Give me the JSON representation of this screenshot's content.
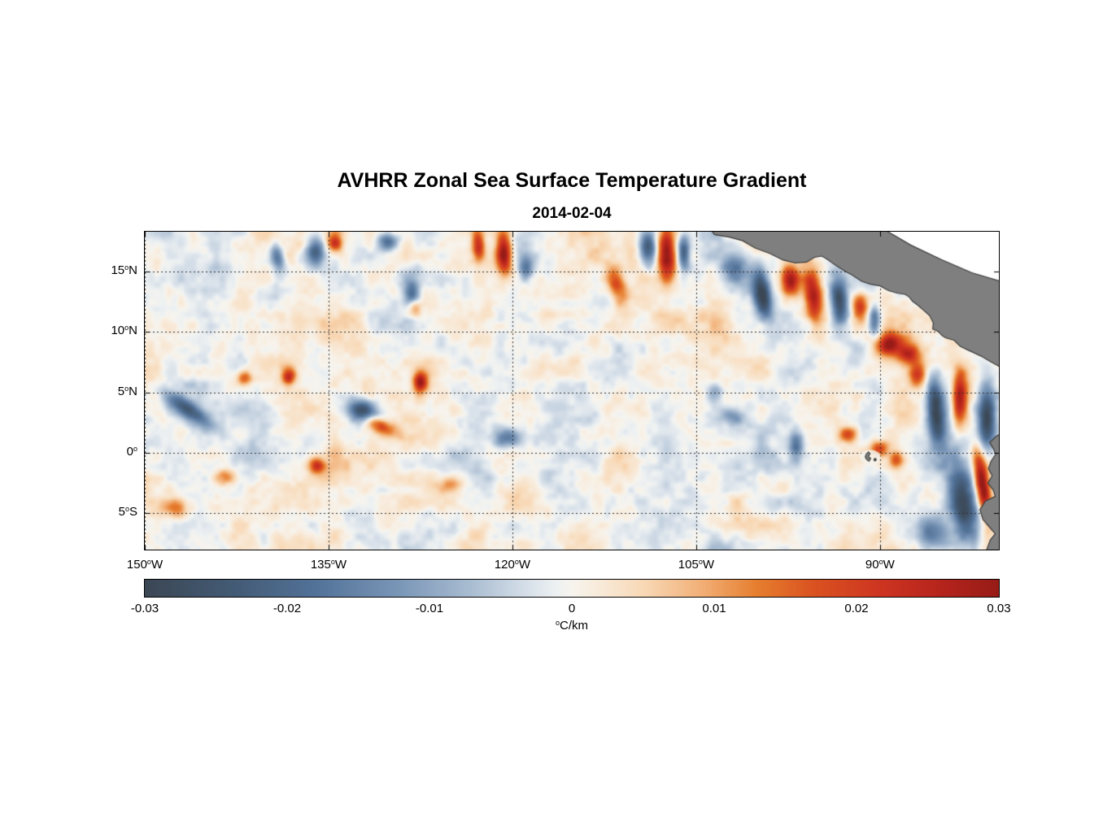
{
  "title": "AVHRR Zonal Sea Surface Temperature Gradient",
  "subtitle": "2014-02-04",
  "chart_data": {
    "type": "heatmap",
    "title": "AVHRR Zonal Sea Surface Temperature Gradient",
    "subtitle": "2014-02-04",
    "units": {
      "sup": "o",
      "text": "C/km"
    },
    "value_range": [
      -0.03,
      0.03
    ],
    "x_axis": {
      "range_lon_east": [
        -150,
        -80.3
      ],
      "ticks": [
        {
          "lon": -150,
          "num": "150",
          "sup": "o",
          "suf": "W"
        },
        {
          "lon": -135,
          "num": "135",
          "sup": "o",
          "suf": "W"
        },
        {
          "lon": -120,
          "num": "120",
          "sup": "o",
          "suf": "W"
        },
        {
          "lon": -105,
          "num": "105",
          "sup": "o",
          "suf": "W"
        },
        {
          "lon": -90,
          "num": "90",
          "sup": "o",
          "suf": "W"
        }
      ]
    },
    "y_axis": {
      "range_lat": [
        18.3,
        -8.0
      ],
      "ticks": [
        {
          "lat": 15,
          "num": "15",
          "sup": "o",
          "suf": "N"
        },
        {
          "lat": 10,
          "num": "10",
          "sup": "o",
          "suf": "N"
        },
        {
          "lat": 5,
          "num": "5",
          "sup": "o",
          "suf": "N"
        },
        {
          "lat": 0,
          "num": "0",
          "sup": "o",
          "suf": ""
        },
        {
          "lat": -5,
          "num": "5",
          "sup": "o",
          "suf": "S"
        }
      ]
    },
    "colorbar_ticks": [
      "-0.03",
      "-0.02",
      "-0.01",
      "0",
      "0.01",
      "0.02",
      "0.03"
    ],
    "colormap_stops": [
      {
        "v": -0.03,
        "color": "#3b4754"
      },
      {
        "v": -0.024,
        "color": "#435a74"
      },
      {
        "v": -0.018,
        "color": "#527298"
      },
      {
        "v": -0.012,
        "color": "#7b97b8"
      },
      {
        "v": -0.007,
        "color": "#aabdd2"
      },
      {
        "v": -0.003,
        "color": "#d8e1ea"
      },
      {
        "v": -0.001,
        "color": "#eef1f2"
      },
      {
        "v": 0.0,
        "color": "#f7f4ee"
      },
      {
        "v": 0.002,
        "color": "#f8ead9"
      },
      {
        "v": 0.005,
        "color": "#f8d9b6"
      },
      {
        "v": 0.009,
        "color": "#f2b179"
      },
      {
        "v": 0.013,
        "color": "#e67e2e"
      },
      {
        "v": 0.017,
        "color": "#da5220"
      },
      {
        "v": 0.022,
        "color": "#cc3320"
      },
      {
        "v": 0.026,
        "color": "#b5241c"
      },
      {
        "v": 0.03,
        "color": "#971b17"
      }
    ],
    "colors": {
      "land": "#7f7f7f",
      "coast": "#3c3c3c",
      "grid": "#2e2e2e",
      "frame": "#000000",
      "masked": "#ffffff",
      "background": "#ffffff"
    },
    "noise": {
      "seed": 20140204,
      "octaves": [
        {
          "nx": 18,
          "ny": 7,
          "amp": 0.0038
        },
        {
          "nx": 36,
          "ny": 14,
          "amp": 0.003
        },
        {
          "nx": 72,
          "ny": 27,
          "amp": 0.0022
        },
        {
          "nx": 144,
          "ny": 54,
          "amp": 0.0013
        }
      ]
    },
    "features_format": [
      "lon",
      "lat",
      "sigma_lon_deg",
      "sigma_lat_deg",
      "rot_deg",
      "amplitude_C_per_km"
    ],
    "features": [
      [
        -139.2,
        16.2,
        0.4,
        0.9,
        10,
        -0.018
      ],
      [
        -136.1,
        16.8,
        0.5,
        0.8,
        0,
        -0.022
      ],
      [
        -134.5,
        17.4,
        0.4,
        0.5,
        0,
        0.02
      ],
      [
        -130.2,
        17.5,
        0.6,
        0.5,
        0,
        -0.02
      ],
      [
        -122.8,
        17.3,
        0.35,
        0.9,
        5,
        0.022
      ],
      [
        -120.7,
        16.5,
        0.45,
        1.3,
        0,
        0.03
      ],
      [
        -118.9,
        15.3,
        0.4,
        0.7,
        0,
        -0.015
      ],
      [
        -108.9,
        17.0,
        0.5,
        1.0,
        0,
        -0.028
      ],
      [
        -107.4,
        16.3,
        0.5,
        1.5,
        0,
        0.03
      ],
      [
        -106.0,
        16.6,
        0.35,
        1.0,
        0,
        -0.024
      ],
      [
        -111.5,
        14.0,
        0.5,
        1.1,
        20,
        0.018
      ],
      [
        -101.8,
        15.3,
        0.8,
        0.9,
        0,
        -0.016
      ],
      [
        -99.6,
        13.2,
        0.5,
        1.5,
        10,
        -0.03
      ],
      [
        -97.3,
        14.3,
        0.55,
        0.95,
        0,
        0.032
      ],
      [
        -95.4,
        13.1,
        0.55,
        1.7,
        8,
        0.03
      ],
      [
        -93.3,
        12.6,
        0.5,
        1.4,
        5,
        -0.028
      ],
      [
        -91.6,
        12.1,
        0.45,
        0.8,
        0,
        0.02
      ],
      [
        -90.4,
        10.9,
        0.35,
        0.9,
        0,
        -0.02
      ],
      [
        -89.2,
        9.0,
        0.75,
        0.65,
        0,
        0.028
      ],
      [
        -87.6,
        8.2,
        0.6,
        0.55,
        0,
        0.022
      ],
      [
        -85.4,
        3.6,
        0.5,
        2.0,
        5,
        -0.03
      ],
      [
        -83.4,
        4.5,
        0.45,
        1.7,
        0,
        0.032
      ],
      [
        -81.2,
        3.0,
        0.5,
        1.9,
        0,
        -0.028
      ],
      [
        -86.9,
        6.4,
        0.5,
        0.7,
        0,
        0.018
      ],
      [
        -92.6,
        1.5,
        0.55,
        0.5,
        0,
        0.022
      ],
      [
        -96.8,
        0.6,
        0.4,
        0.9,
        0,
        -0.015
      ],
      [
        -90.0,
        0.3,
        0.5,
        0.4,
        0,
        0.018
      ],
      [
        -88.6,
        -0.6,
        0.4,
        0.5,
        0,
        0.016
      ],
      [
        -81.6,
        -2.6,
        0.4,
        2.0,
        8,
        0.034
      ],
      [
        -83.1,
        -4.2,
        0.8,
        2.3,
        10,
        -0.03
      ],
      [
        -85.6,
        -6.6,
        1.1,
        0.9,
        0,
        -0.02
      ],
      [
        -146.6,
        3.6,
        1.6,
        0.5,
        -35,
        -0.024
      ],
      [
        -141.9,
        6.2,
        0.45,
        0.45,
        0,
        0.018
      ],
      [
        -138.3,
        6.3,
        0.4,
        0.5,
        0,
        0.022
      ],
      [
        -132.3,
        3.4,
        0.85,
        0.65,
        -30,
        -0.028
      ],
      [
        -131.0,
        2.3,
        1.1,
        0.45,
        -25,
        0.02
      ],
      [
        -127.5,
        5.9,
        0.4,
        0.6,
        0,
        0.026
      ],
      [
        -128.2,
        13.1,
        0.45,
        0.8,
        0,
        -0.02
      ],
      [
        -128.0,
        12.1,
        0.4,
        0.55,
        0,
        0.018
      ],
      [
        -136.0,
        -1.1,
        0.45,
        0.45,
        0,
        0.02
      ],
      [
        -120.2,
        1.2,
        0.8,
        0.5,
        0,
        -0.014
      ],
      [
        -143.5,
        -2.0,
        0.6,
        0.5,
        0,
        0.012
      ],
      [
        -147.6,
        -4.6,
        0.8,
        0.6,
        0,
        0.013
      ],
      [
        -125.0,
        -2.6,
        0.7,
        0.5,
        0,
        0.012
      ],
      [
        -103.5,
        5.0,
        0.5,
        0.6,
        -20,
        -0.014
      ],
      [
        -102.0,
        3.0,
        0.8,
        0.5,
        -30,
        -0.012
      ]
    ],
    "land": {
      "central_america": [
        [
          -103.8,
          18.45
        ],
        [
          -103.5,
          18.05
        ],
        [
          -102.3,
          17.85
        ],
        [
          -101.2,
          17.55
        ],
        [
          -100.2,
          16.95
        ],
        [
          -99.0,
          16.5
        ],
        [
          -97.9,
          15.95
        ],
        [
          -96.9,
          15.72
        ],
        [
          -96.0,
          15.78
        ],
        [
          -95.35,
          16.18
        ],
        [
          -94.75,
          16.28
        ],
        [
          -94.35,
          16.05
        ],
        [
          -93.6,
          15.5
        ],
        [
          -92.9,
          15.05
        ],
        [
          -92.25,
          14.7
        ],
        [
          -91.5,
          14.2
        ],
        [
          -90.75,
          13.95
        ],
        [
          -90.0,
          13.82
        ],
        [
          -89.3,
          13.42
        ],
        [
          -88.6,
          13.22
        ],
        [
          -87.95,
          13.12
        ],
        [
          -87.6,
          12.88
        ],
        [
          -87.35,
          12.55
        ],
        [
          -86.95,
          12.25
        ],
        [
          -86.5,
          11.85
        ],
        [
          -85.95,
          11.35
        ],
        [
          -85.65,
          10.75
        ],
        [
          -85.7,
          10.25
        ],
        [
          -85.25,
          10.05
        ],
        [
          -84.95,
          9.72
        ],
        [
          -84.65,
          9.52
        ],
        [
          -83.95,
          9.32
        ],
        [
          -83.45,
          8.82
        ],
        [
          -82.85,
          8.52
        ],
        [
          -82.2,
          8.22
        ],
        [
          -81.6,
          7.92
        ],
        [
          -81.0,
          7.55
        ],
        [
          -80.45,
          7.25
        ],
        [
          -80.0,
          7.0
        ],
        [
          -80.0,
          18.45
        ]
      ],
      "caribbean_mask": [
        [
          -89.6,
          18.45
        ],
        [
          -80.0,
          18.45
        ],
        [
          -80.0,
          14.15
        ],
        [
          -82.5,
          14.9
        ],
        [
          -85.0,
          16.0
        ],
        [
          -87.5,
          17.2
        ]
      ],
      "south_america": [
        [
          -80.0,
          1.7
        ],
        [
          -80.55,
          1.35
        ],
        [
          -81.05,
          0.85
        ],
        [
          -80.75,
          0.35
        ],
        [
          -80.55,
          -0.1
        ],
        [
          -80.95,
          -0.7
        ],
        [
          -81.15,
          -1.3
        ],
        [
          -80.85,
          -1.9
        ],
        [
          -81.2,
          -2.5
        ],
        [
          -80.75,
          -3.1
        ],
        [
          -80.6,
          -3.6
        ],
        [
          -81.4,
          -4.0
        ],
        [
          -81.85,
          -4.7
        ],
        [
          -81.6,
          -5.5
        ],
        [
          -81.1,
          -6.1
        ],
        [
          -80.6,
          -6.7
        ],
        [
          -81.0,
          -7.2
        ],
        [
          -81.4,
          -8.3
        ],
        [
          -80.0,
          -8.3
        ]
      ],
      "galapagos": [
        [
          [
            -91.15,
            -0.15
          ],
          [
            -90.95,
            0.1
          ],
          [
            -90.8,
            -0.05
          ],
          [
            -90.95,
            -0.3
          ],
          [
            -90.75,
            -0.45
          ],
          [
            -90.9,
            -0.7
          ],
          [
            -91.1,
            -0.55
          ],
          [
            -91.2,
            -0.35
          ]
        ],
        [
          [
            -90.5,
            -0.5
          ],
          [
            -90.35,
            -0.45
          ],
          [
            -90.3,
            -0.6
          ],
          [
            -90.45,
            -0.68
          ]
        ]
      ],
      "galapagos_halo": {
        "lon": -90.8,
        "lat": -0.35,
        "rx": 0.85,
        "ry": 0.6
      }
    }
  }
}
